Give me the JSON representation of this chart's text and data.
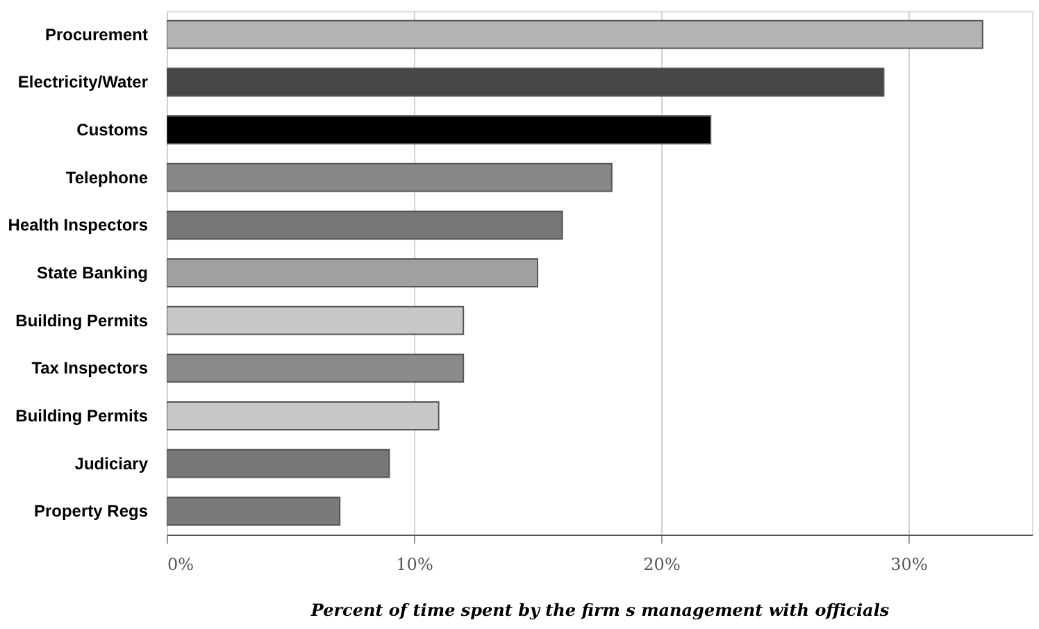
{
  "chart_data": {
    "type": "bar",
    "orientation": "horizontal",
    "categories": [
      "Procurement",
      "Electricity/Water",
      "Customs",
      "Telephone",
      "Health Inspectors",
      "State Banking",
      "Building Permits",
      "Tax Inspectors",
      "Building Permits",
      "Judiciary",
      "Property Regs"
    ],
    "values": [
      33,
      29,
      22,
      18,
      16,
      15,
      12,
      12,
      11,
      9,
      7
    ],
    "colors": [
      "#b4b4b4",
      "#474747",
      "#000000",
      "#888888",
      "#777777",
      "#a0a0a0",
      "#c8c8c8",
      "#8a8a8a",
      "#c8c8c8",
      "#777777",
      "#7a7a7a"
    ],
    "xlim": [
      0,
      35
    ],
    "xticks": [
      {
        "value": 0,
        "label": "0%"
      },
      {
        "value": 10,
        "label": "10%"
      },
      {
        "value": 20,
        "label": "20%"
      },
      {
        "value": 30,
        "label": "30%"
      }
    ],
    "xlabel": "Percent of time spent by the firm s management with officials",
    "grid": "x"
  }
}
